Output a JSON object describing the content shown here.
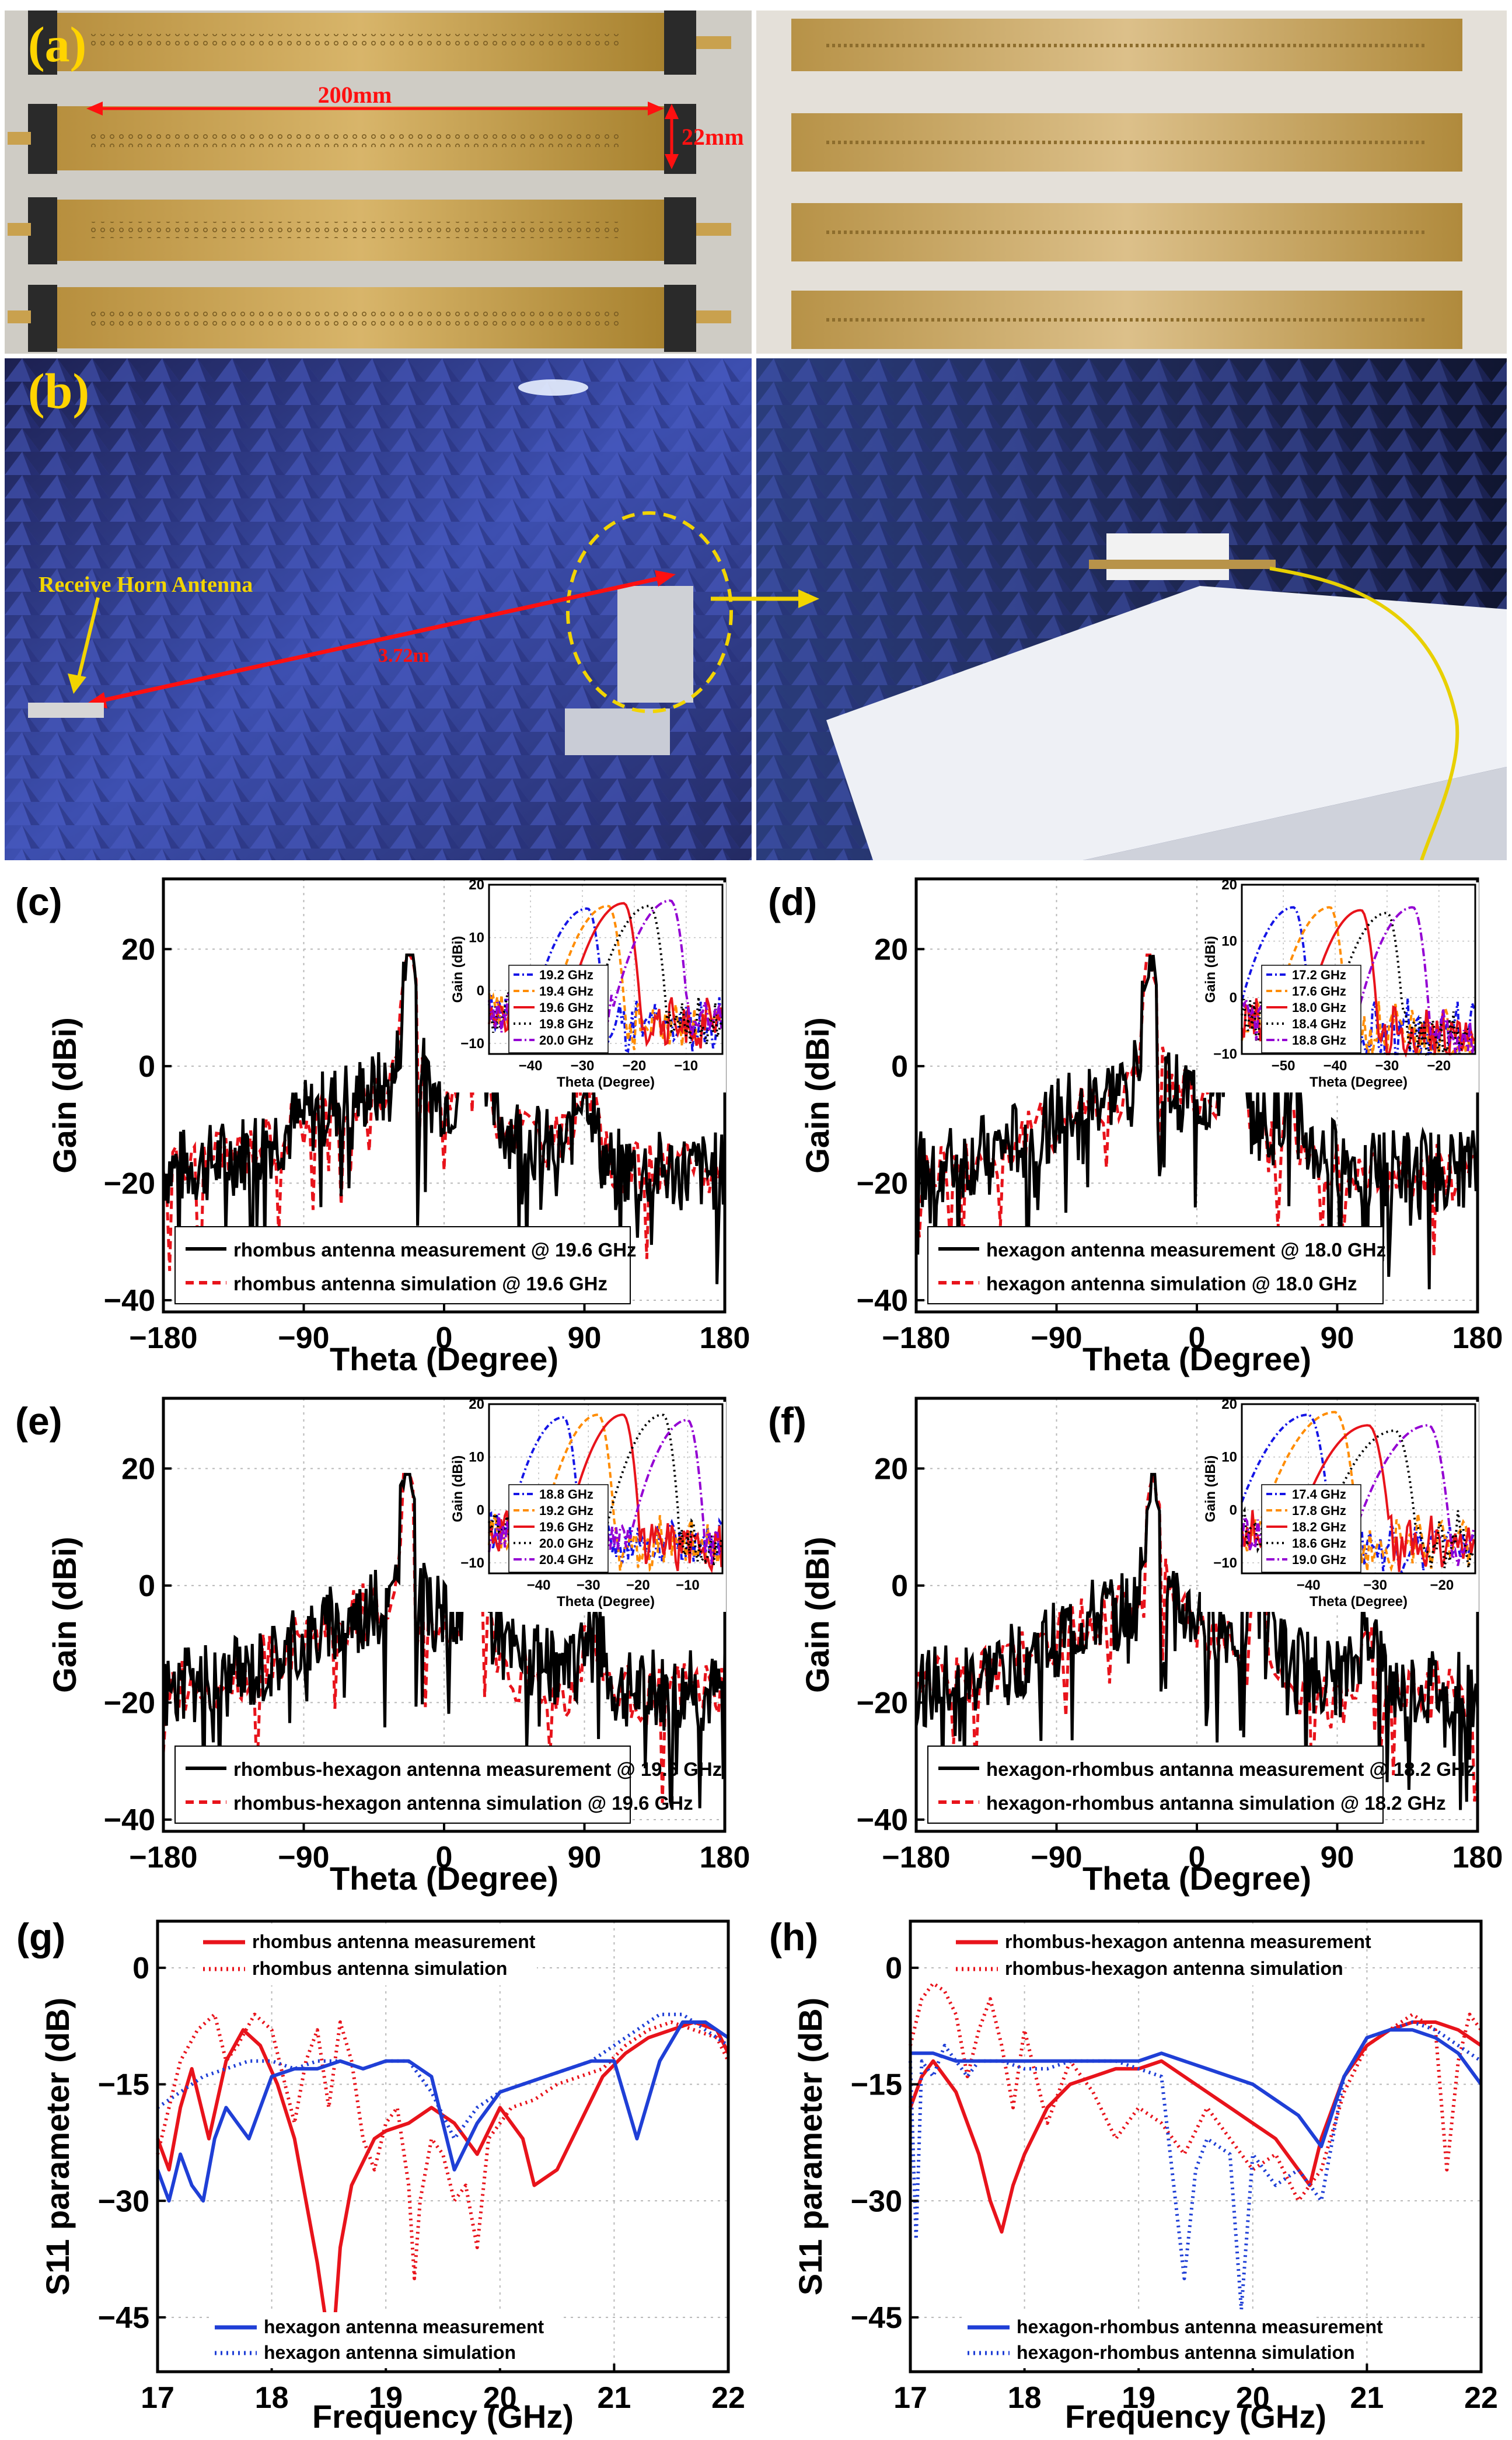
{
  "figure": {
    "panel_a": {
      "letter": "(a)",
      "dim_length": "200mm",
      "dim_width": "22mm"
    },
    "panel_b": {
      "letter": "(b)",
      "receive_label": "Receive Horn Antenna",
      "distance_label": "3.72m"
    }
  },
  "colors": {
    "measurement": "#000000",
    "simulation": "#e8131b",
    "inset": [
      "#1515e6",
      "#ff8c00",
      "#e8131b",
      "#000000",
      "#9400d3"
    ],
    "s11_red": "#e8131b",
    "s11_blue": "#1f3fd6"
  },
  "chart_data": [
    {
      "id": "c",
      "letter": "(c)",
      "type": "line",
      "xlabel": "Theta (Degree)",
      "ylabel": "Gain (dBi)",
      "xlim": [
        -180,
        180
      ],
      "ylim": [
        -42,
        32
      ],
      "xticks": [
        -180,
        -90,
        0,
        90,
        180
      ],
      "yticks": [
        -40,
        -20,
        0,
        20
      ],
      "legend": [
        "rhombus antenna measurement @ 19.6 GHz",
        "rhombus antenna simulation @ 19.6 GHz"
      ],
      "main": {
        "peak": -22,
        "peakVal": 17,
        "nullAt": -17,
        "sidelobe": [
          [
            20,
            6
          ],
          [
            90,
            2
          ]
        ],
        "noise": 1,
        "simOffset": 1.5
      },
      "inset": {
        "ylabel": "Gain (dBi)",
        "xlabel": "Theta (Degree)",
        "xlim": [
          -48,
          -3
        ],
        "ylim": [
          -12,
          20
        ],
        "xticks": [
          -40,
          -30,
          -20,
          -10
        ],
        "yticks": [
          -10,
          0,
          10,
          20
        ],
        "legend": [
          "19.2 GHz",
          "19.4 GHz",
          "19.6 GHz",
          "19.8 GHz",
          "20.0 GHz"
        ],
        "peaks": [
          -29,
          -25,
          -22,
          -17,
          -13
        ],
        "peakVals": [
          15.5,
          16,
          16.5,
          16,
          17
        ]
      }
    },
    {
      "id": "d",
      "letter": "(d)",
      "type": "line",
      "xlabel": "Theta (Degree)",
      "ylabel": "Gain (dBi)",
      "xlim": [
        -180,
        180
      ],
      "ylim": [
        -42,
        32
      ],
      "xticks": [
        -180,
        -90,
        0,
        90,
        180
      ],
      "yticks": [
        -40,
        -20,
        0,
        20
      ],
      "legend": [
        "hexagon antenna measurement @ 18.0 GHz",
        "hexagon antenna simulation @ 18.0 GHz"
      ],
      "main": {
        "peak": -30,
        "peakVal": 16,
        "nullAt": -24,
        "sidelobe": [
          [
            25,
            6
          ],
          [
            60,
            -5
          ]
        ],
        "noise": 2,
        "simOffset": -3
      },
      "inset": {
        "ylabel": "Gain (dBi)",
        "xlabel": "Theta (Degree)",
        "xlim": [
          -58,
          -13
        ],
        "ylim": [
          -10,
          20
        ],
        "xticks": [
          -50,
          -40,
          -30,
          -20
        ],
        "yticks": [
          -10,
          0,
          10,
          20
        ],
        "legend": [
          "17.2 GHz",
          "17.6 GHz",
          "18.0 GHz",
          "18.4 GHz",
          "18.8 GHz"
        ],
        "peaks": [
          -48,
          -41,
          -35,
          -30,
          -25
        ],
        "peakVals": [
          16,
          16,
          15.5,
          15,
          16
        ]
      }
    },
    {
      "id": "e",
      "letter": "(e)",
      "type": "line",
      "xlabel": "Theta (Degree)",
      "ylabel": "Gain (dBi)",
      "xlim": [
        -180,
        180
      ],
      "ylim": [
        -42,
        32
      ],
      "xticks": [
        -180,
        -90,
        0,
        90,
        180
      ],
      "yticks": [
        -40,
        -20,
        0,
        20
      ],
      "legend": [
        "rhombus-hexagon antenna measurement @ 19.6 GHz",
        "rhombus-hexagon antenna simulation @ 19.6 GHz"
      ],
      "main": {
        "peak": -23,
        "peakVal": 18,
        "nullAt": -18,
        "sidelobe": [
          [
            20,
            6
          ],
          [
            95,
            0
          ]
        ],
        "noise": 3,
        "simOffset": -4
      },
      "inset": {
        "ylabel": "Gain (dBi)",
        "xlabel": "Theta (Degree)",
        "xlim": [
          -50,
          -3
        ],
        "ylim": [
          -12,
          20
        ],
        "xticks": [
          -40,
          -30,
          -20,
          -10
        ],
        "yticks": [
          -10,
          0,
          10,
          20
        ],
        "legend": [
          "18.8 GHz",
          "19.2 GHz",
          "19.6 GHz",
          "20.0 GHz",
          "20.4 GHz"
        ],
        "peaks": [
          -35,
          -28,
          -23,
          -15,
          -10
        ],
        "peakVals": [
          17.5,
          18,
          18,
          18,
          17
        ]
      }
    },
    {
      "id": "f",
      "letter": "(f)",
      "type": "line",
      "xlabel": "Theta (Degree)",
      "ylabel": "Gain (dBi)",
      "xlim": [
        -180,
        180
      ],
      "ylim": [
        -42,
        32
      ],
      "xticks": [
        -180,
        -90,
        0,
        90,
        180
      ],
      "yticks": [
        -40,
        -20,
        0,
        20
      ],
      "legend": [
        "hexagon-rhombus antanna measurement @ 18.2 GHz",
        "hexagon-rhombus antanna simulation @ 18.2 GHz"
      ],
      "main": {
        "peak": -28,
        "peakVal": 16,
        "nullAt": -22,
        "sidelobe": [
          [
            40,
            5
          ],
          [
            110,
            -2
          ]
        ],
        "noise": 4,
        "simOffset": -6
      },
      "inset": {
        "ylabel": "Gain (dBi)",
        "xlabel": "Theta (Degree)",
        "xlim": [
          -50,
          -15
        ],
        "ylim": [
          -12,
          20
        ],
        "xticks": [
          -40,
          -30,
          -20
        ],
        "yticks": [
          -10,
          0,
          10,
          20
        ],
        "legend": [
          "17.4 GHz",
          "17.8 GHz",
          "18.2 GHz",
          "18.6 GHz",
          "19.0 GHz"
        ],
        "peaks": [
          -40,
          -36,
          -31,
          -27,
          -22
        ],
        "peakVals": [
          18,
          18.5,
          16,
          15,
          16
        ]
      }
    },
    {
      "id": "g",
      "letter": "(g)",
      "type": "line",
      "xlabel": "Frequency (GHz)",
      "ylabel": "S11 parameter (dB)",
      "xlim": [
        17,
        22
      ],
      "ylim": [
        -52,
        6
      ],
      "xticks": [
        17,
        18,
        19,
        20,
        21,
        22
      ],
      "yticks": [
        -45,
        -30,
        -15,
        0
      ],
      "legend": [
        "rhombus antenna measurement",
        "rhombus antenna simulation",
        "hexagon antenna measurement",
        "hexagon antenna simulation"
      ],
      "series": [
        {
          "name": "rhombus antenna measurement",
          "x": [
            17,
            17.1,
            17.2,
            17.3,
            17.45,
            17.6,
            17.75,
            17.9,
            18.05,
            18.2,
            18.3,
            18.4,
            18.5,
            18.55,
            18.6,
            18.7,
            18.8,
            18.9,
            19.0,
            19.2,
            19.4,
            19.6,
            19.8,
            20.0,
            20.2,
            20.3,
            20.5,
            20.7,
            20.9,
            21.1,
            21.3,
            21.5,
            21.7,
            21.9,
            22
          ],
          "y": [
            -22,
            -26,
            -18,
            -13,
            -22,
            -12,
            -8,
            -10,
            -15,
            -22,
            -30,
            -38,
            -48,
            -46,
            -36,
            -28,
            -25,
            -22,
            -21,
            -20,
            -18,
            -20,
            -24,
            -18,
            -22,
            -28,
            -26,
            -20,
            -14,
            -11,
            -9,
            -8,
            -7,
            -8,
            -11
          ]
        },
        {
          "name": "rhombus antenna simulation",
          "x": [
            17,
            17.1,
            17.2,
            17.35,
            17.5,
            17.6,
            17.7,
            17.85,
            18.0,
            18.1,
            18.2,
            18.3,
            18.4,
            18.5,
            18.6,
            18.7,
            18.8,
            18.9,
            19.0,
            19.1,
            19.2,
            19.25,
            19.3,
            19.4,
            19.5,
            19.6,
            19.7,
            19.8,
            19.9,
            20.0,
            20.1,
            20.3,
            20.5,
            20.7,
            20.9,
            21.1,
            21.3,
            21.5,
            21.7,
            21.9,
            22
          ],
          "y": [
            -24,
            -18,
            -12,
            -8,
            -6,
            -12,
            -10,
            -6,
            -8,
            -14,
            -20,
            -12,
            -8,
            -18,
            -7,
            -12,
            -22,
            -26,
            -20,
            -18,
            -28,
            -40,
            -30,
            -22,
            -24,
            -30,
            -28,
            -36,
            -22,
            -20,
            -18,
            -17,
            -15,
            -14,
            -13,
            -10,
            -8,
            -7,
            -8,
            -9,
            -12
          ]
        },
        {
          "name": "hexagon antenna measurement",
          "x": [
            17,
            17.1,
            17.2,
            17.3,
            17.4,
            17.5,
            17.6,
            17.7,
            17.8,
            17.9,
            18.0,
            18.2,
            18.4,
            18.6,
            18.8,
            19.0,
            19.2,
            19.4,
            19.6,
            19.8,
            20.0,
            20.2,
            20.4,
            20.6,
            20.8,
            21.0,
            21.2,
            21.4,
            21.6,
            21.8,
            22
          ],
          "y": [
            -26,
            -30,
            -24,
            -28,
            -30,
            -22,
            -18,
            -20,
            -22,
            -18,
            -14,
            -13,
            -13,
            -12,
            -13,
            -12,
            -12,
            -14,
            -26,
            -20,
            -16,
            -15,
            -14,
            -13,
            -12,
            -12,
            -22,
            -12,
            -7,
            -7,
            -9
          ]
        },
        {
          "name": "hexagon antenna simulation",
          "x": [
            17,
            17.2,
            17.4,
            17.6,
            17.8,
            18.0,
            18.2,
            18.4,
            18.6,
            18.8,
            19.0,
            19.2,
            19.4,
            19.6,
            19.8,
            20.0,
            20.2,
            20.4,
            20.6,
            20.8,
            21.0,
            21.2,
            21.4,
            21.6,
            21.8,
            22
          ],
          "y": [
            -18,
            -16,
            -14,
            -13,
            -12,
            -12,
            -13,
            -12,
            -12,
            -13,
            -12,
            -12,
            -16,
            -22,
            -18,
            -16,
            -15,
            -14,
            -13,
            -12,
            -10,
            -8,
            -6,
            -6,
            -8,
            -10
          ]
        }
      ]
    },
    {
      "id": "h",
      "letter": "(h)",
      "type": "line",
      "xlabel": "Frequency (GHz)",
      "ylabel": "S11 parameter (dB)",
      "xlim": [
        17,
        22
      ],
      "ylim": [
        -52,
        6
      ],
      "xticks": [
        17,
        18,
        19,
        20,
        21,
        22
      ],
      "yticks": [
        -45,
        -30,
        -15,
        0
      ],
      "legend": [
        "rhombus-hexagon antenna measurement",
        "rhombus-hexagon antenna simulation",
        "hexagon-rhombus antenna measurement",
        "hexagon-rhombus antenna simulation"
      ],
      "series": [
        {
          "name": "rhombus-hexagon antenna measurement",
          "x": [
            17,
            17.1,
            17.2,
            17.3,
            17.4,
            17.5,
            17.6,
            17.7,
            17.8,
            17.9,
            18.0,
            18.2,
            18.4,
            18.6,
            18.8,
            19.0,
            19.2,
            19.4,
            19.6,
            19.8,
            20.0,
            20.2,
            20.4,
            20.5,
            20.6,
            20.8,
            21.0,
            21.2,
            21.4,
            21.6,
            21.8,
            22
          ],
          "y": [
            -18,
            -14,
            -12,
            -14,
            -16,
            -20,
            -24,
            -30,
            -34,
            -28,
            -24,
            -18,
            -15,
            -14,
            -13,
            -13,
            -12,
            -14,
            -16,
            -18,
            -20,
            -22,
            -26,
            -28,
            -22,
            -14,
            -10,
            -8,
            -7,
            -7,
            -8,
            -10
          ]
        },
        {
          "name": "rhombus-hexagon antenna simulation",
          "x": [
            17,
            17.1,
            17.2,
            17.3,
            17.4,
            17.5,
            17.6,
            17.7,
            17.8,
            17.9,
            18.0,
            18.1,
            18.2,
            18.4,
            18.6,
            18.8,
            19.0,
            19.2,
            19.4,
            19.6,
            19.8,
            20.0,
            20.2,
            20.4,
            20.6,
            20.8,
            21.0,
            21.2,
            21.4,
            21.6,
            21.7,
            21.8,
            21.9,
            22
          ],
          "y": [
            -10,
            -4,
            -2,
            -3,
            -6,
            -14,
            -8,
            -4,
            -10,
            -18,
            -8,
            -14,
            -20,
            -12,
            -16,
            -22,
            -18,
            -20,
            -24,
            -18,
            -22,
            -26,
            -24,
            -30,
            -26,
            -16,
            -10,
            -8,
            -6,
            -8,
            -26,
            -12,
            -6,
            -8
          ]
        },
        {
          "name": "hexagon-rhombus antenna measurement",
          "x": [
            17,
            17.2,
            17.4,
            17.6,
            17.8,
            18.0,
            18.2,
            18.4,
            18.6,
            18.8,
            19.0,
            19.2,
            19.4,
            19.6,
            19.8,
            20.0,
            20.2,
            20.4,
            20.6,
            20.8,
            21.0,
            21.2,
            21.4,
            21.6,
            21.8,
            22
          ],
          "y": [
            -11,
            -11,
            -12,
            -12,
            -12,
            -12,
            -12,
            -12,
            -12,
            -12,
            -12,
            -11,
            -12,
            -13,
            -14,
            -15,
            -17,
            -19,
            -23,
            -14,
            -9,
            -8,
            -8,
            -9,
            -11,
            -15
          ]
        },
        {
          "name": "hexagon-rhombus antenna simulation",
          "x": [
            17,
            17.05,
            17.1,
            17.2,
            17.3,
            17.4,
            17.5,
            17.6,
            17.8,
            18.0,
            18.2,
            18.4,
            18.6,
            18.8,
            19.0,
            19.2,
            19.4,
            19.5,
            19.6,
            19.8,
            19.9,
            20.0,
            20.2,
            20.4,
            20.6,
            20.8,
            21.0,
            21.2,
            21.4,
            21.6,
            21.8,
            22
          ],
          "y": [
            -12,
            -35,
            -12,
            -14,
            -10,
            -12,
            -14,
            -12,
            -12,
            -13,
            -13,
            -12,
            -12,
            -12,
            -13,
            -14,
            -40,
            -26,
            -22,
            -24,
            -44,
            -24,
            -28,
            -26,
            -30,
            -14,
            -9,
            -8,
            -7,
            -8,
            -10,
            -12
          ]
        }
      ]
    }
  ]
}
